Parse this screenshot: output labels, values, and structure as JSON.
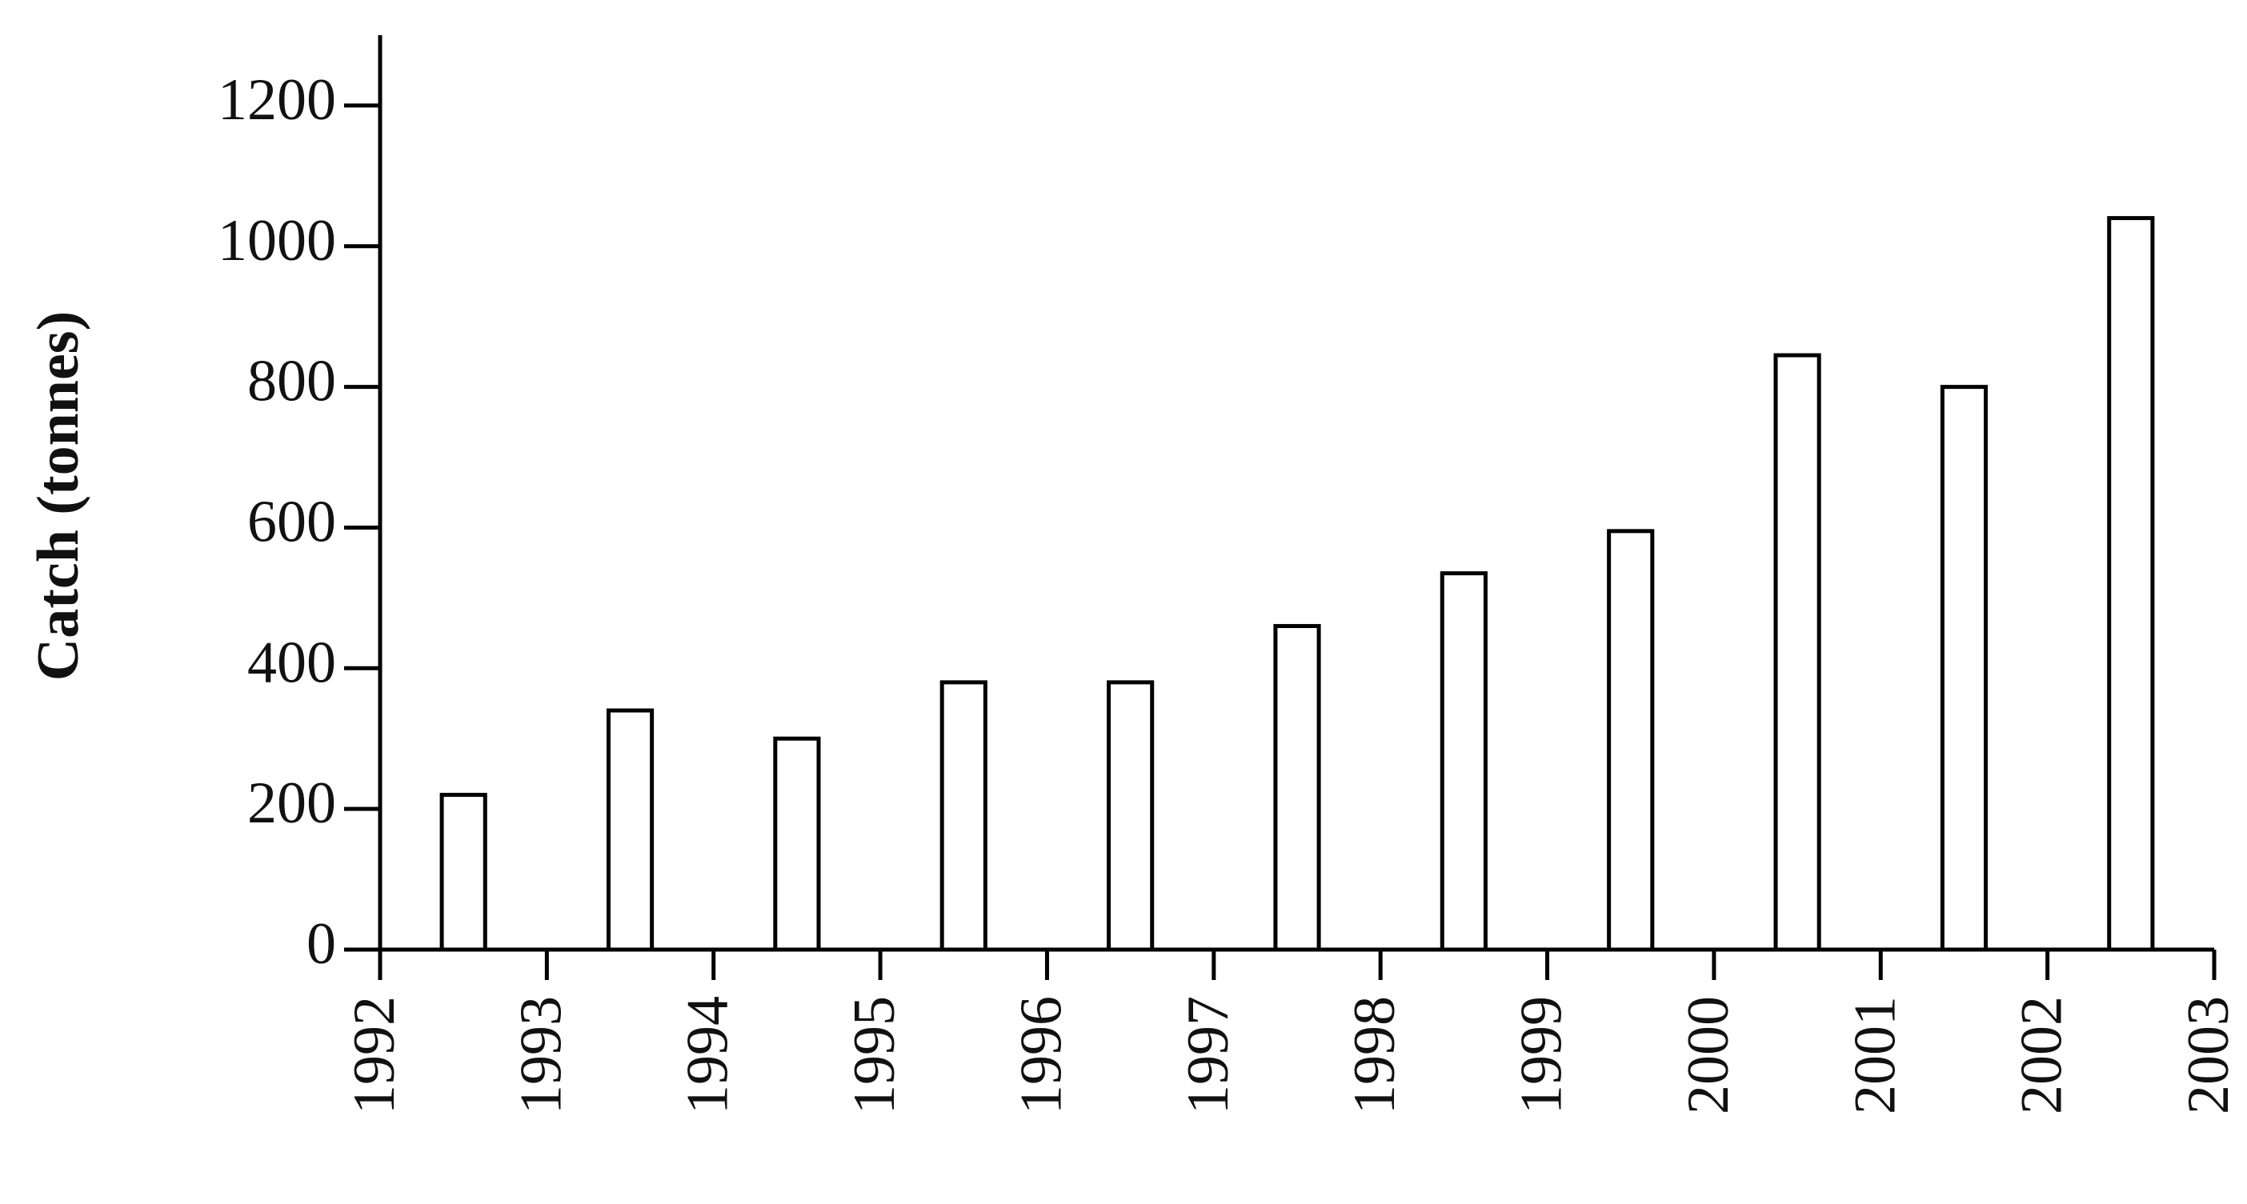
{
  "chart_data": {
    "type": "bar",
    "y_label": "Catch (tonnes)",
    "x": [
      1992,
      1993,
      1994,
      1995,
      1996,
      1997,
      1998,
      1999,
      2000,
      2001,
      2002
    ],
    "values": [
      220,
      340,
      300,
      380,
      380,
      460,
      535,
      595,
      845,
      800,
      1040
    ],
    "color": "#ffffff",
    "xlim": [
      1992,
      2003
    ],
    "xticks": [
      1992,
      1993,
      1994,
      1995,
      1996,
      1997,
      1998,
      1999,
      2000,
      2001,
      2002,
      2003
    ],
    "ylim": [
      0,
      1300
    ],
    "yticks": [
      0,
      200,
      400,
      600,
      800,
      1000,
      1200
    ],
    "grid": false
  }
}
